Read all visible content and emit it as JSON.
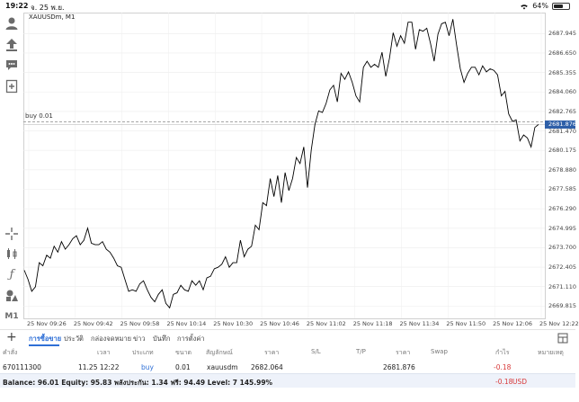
{
  "status_bar": {
    "time": "19:22",
    "date": "จ. 25 พ.ย.",
    "battery": "64%",
    "battery_level": 0.64
  },
  "chart": {
    "title": "XAUUSDm, M1",
    "buy_label": "buy 0.01",
    "current_price": "2681.876",
    "price_tag_color": "#2e5fa8",
    "line_color": "#000000"
  },
  "chart_data": {
    "type": "line",
    "title": "XAUUSDm, M1",
    "xlabel": "",
    "ylabel": "",
    "y_ticks": [
      "2687.945",
      "2686.650",
      "2685.355",
      "2684.060",
      "2682.765",
      "2681.470",
      "2680.175",
      "2678.880",
      "2677.585",
      "2676.290",
      "2674.995",
      "2673.700",
      "2672.405",
      "2671.110",
      "2669.815"
    ],
    "x_ticks": [
      "25 Nov 09:26",
      "25 Nov 09:42",
      "25 Nov 09:58",
      "25 Nov 10:14",
      "25 Nov 10:30",
      "25 Nov 10:46",
      "25 Nov 11:02",
      "25 Nov 11:18",
      "25 Nov 11:34",
      "25 Nov 11:50",
      "25 Nov 12:06",
      "25 Nov 12:22"
    ],
    "ylim": [
      2669.0,
      2689.1
    ],
    "grid": true,
    "buy_level": 2682.064,
    "current_price": 2681.876,
    "series": [
      {
        "values": [
          2672.2,
          2671.6,
          2670.8,
          2671.1,
          2672.7,
          2672.5,
          2673.2,
          2673.0,
          2673.8,
          2673.4,
          2674.1,
          2673.6,
          2673.9,
          2674.3,
          2674.5,
          2673.9,
          2674.2,
          2675.0,
          2674.0,
          2673.9,
          2673.9,
          2674.1,
          2673.6,
          2673.4,
          2673.0,
          2672.5,
          2672.4,
          2671.6,
          2670.8,
          2670.9,
          2670.8,
          2671.3,
          2671.5,
          2670.9,
          2670.4,
          2670.1,
          2670.6,
          2670.9,
          2670.0,
          2669.7,
          2670.6,
          2670.7,
          2671.2,
          2670.9,
          2670.8,
          2671.5,
          2671.2,
          2671.5,
          2670.9,
          2671.7,
          2671.8,
          2672.3,
          2672.4,
          2672.6,
          2673.1,
          2672.4,
          2672.7,
          2672.7,
          2674.2,
          2673.1,
          2673.6,
          2673.8,
          2675.2,
          2674.9,
          2676.7,
          2676.5,
          2678.3,
          2677.1,
          2678.5,
          2676.7,
          2678.7,
          2677.5,
          2678.3,
          2679.7,
          2679.3,
          2680.4,
          2677.7,
          2680.2,
          2681.9,
          2682.8,
          2682.7,
          2683.3,
          2684.2,
          2684.5,
          2683.4,
          2685.3,
          2684.9,
          2685.4,
          2684.7,
          2683.8,
          2683.4,
          2685.7,
          2686.1,
          2685.7,
          2685.9,
          2685.7,
          2686.7,
          2685.1,
          2686.3,
          2688.0,
          2687.1,
          2687.8,
          2687.3,
          2688.7,
          2688.7,
          2686.9,
          2688.2,
          2688.1,
          2688.3,
          2687.3,
          2686.1,
          2687.9,
          2688.6,
          2688.7,
          2687.8,
          2688.9,
          2687.2,
          2685.6,
          2684.7,
          2685.3,
          2685.7,
          2685.7,
          2685.2,
          2685.8,
          2685.4,
          2685.6,
          2685.5,
          2685.2,
          2683.8,
          2684.1,
          2682.6,
          2682.1,
          2682.2,
          2680.8,
          2681.2,
          2681.0,
          2680.4,
          2681.7,
          2681.9
        ]
      }
    ]
  },
  "tabs": {
    "add_label": "+",
    "items": [
      "การซื้อขาย",
      "ประวัติ",
      "กล่องจดหมาย",
      "ข่าว",
      "บันทึก",
      "การตั้งค่า"
    ]
  },
  "table": {
    "headers": [
      "คำสั่ง",
      "เวลา",
      "ประเภท",
      "ขนาด",
      "สัญลักษณ์",
      "ราคา",
      "S/L",
      "T/P",
      "ราคา",
      "Swap",
      "กำไร",
      "หมายเหตุ"
    ],
    "row": {
      "order": "670111300",
      "time": "11.25 12:22",
      "type": "buy",
      "size": "0.01",
      "symbol": "xauusdm",
      "open_price": "2682.064",
      "current_price": "2681.876",
      "profit": "-0.18"
    }
  },
  "balance": {
    "text": "Balance: 96.01  Equity: 95.83  พลังประกัน: 1.34  ฟรี: 94.49  Level: 7 145.99%",
    "profit": "-0.18",
    "currency": "USD"
  },
  "toolbar_icons": [
    "account-icon",
    "trade-share-icon",
    "chat-icon",
    "new-order-icon",
    "crosshair-icon",
    "indicators-icon",
    "function-icon",
    "objects-icon",
    "timeframe-icon"
  ],
  "toolbar_timeframe": "M1"
}
